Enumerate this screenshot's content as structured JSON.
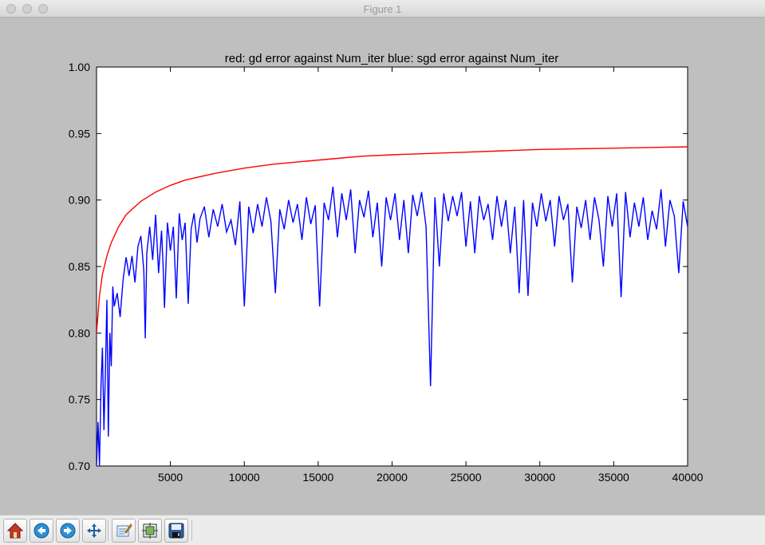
{
  "window": {
    "title": "Figure 1"
  },
  "toolbar": {
    "buttons": [
      {
        "icon": "home-icon"
      },
      {
        "icon": "back-arrow-icon"
      },
      {
        "icon": "forward-arrow-icon"
      },
      {
        "icon": "pan-icon"
      },
      {
        "icon": "zoom-rect-icon"
      },
      {
        "icon": "subplots-icon"
      },
      {
        "icon": "save-icon"
      }
    ]
  },
  "colors": {
    "gd": "#ff0000",
    "sgd": "#0000ff"
  },
  "chart_data": {
    "type": "line",
    "title": "red: gd error against Num_iter  blue: sgd error against Num_iter",
    "xlabel": "",
    "ylabel": "",
    "xlim": [
      0,
      40000
    ],
    "ylim": [
      0.7,
      1.0
    ],
    "xticks": [
      "5000",
      "10000",
      "15000",
      "20000",
      "25000",
      "30000",
      "35000",
      "40000"
    ],
    "yticks": [
      "0.70",
      "0.75",
      "0.80",
      "0.85",
      "0.90",
      "0.95",
      "1.00"
    ],
    "grid": false,
    "series": [
      {
        "color": "#ff0000",
        "points": [
          [
            0,
            0.8
          ],
          [
            200,
            0.828
          ],
          [
            400,
            0.844
          ],
          [
            700,
            0.858
          ],
          [
            1000,
            0.868
          ],
          [
            1500,
            0.88
          ],
          [
            2000,
            0.889
          ],
          [
            3000,
            0.899
          ],
          [
            4000,
            0.906
          ],
          [
            5000,
            0.911
          ],
          [
            6000,
            0.915
          ],
          [
            8000,
            0.92
          ],
          [
            10000,
            0.924
          ],
          [
            12000,
            0.927
          ],
          [
            14000,
            0.929
          ],
          [
            16000,
            0.931
          ],
          [
            18000,
            0.933
          ],
          [
            20000,
            0.934
          ],
          [
            22500,
            0.935
          ],
          [
            25000,
            0.936
          ],
          [
            27500,
            0.937
          ],
          [
            30000,
            0.938
          ],
          [
            32500,
            0.9385
          ],
          [
            35000,
            0.939
          ],
          [
            37500,
            0.9395
          ],
          [
            40000,
            0.94
          ]
        ]
      },
      {
        "color": "#0000ff",
        "points": [
          [
            0,
            0.7
          ],
          [
            100,
            0.733
          ],
          [
            200,
            0.7
          ],
          [
            300,
            0.76
          ],
          [
            400,
            0.789
          ],
          [
            500,
            0.727
          ],
          [
            600,
            0.77
          ],
          [
            700,
            0.825
          ],
          [
            800,
            0.722
          ],
          [
            900,
            0.8
          ],
          [
            1000,
            0.775
          ],
          [
            1100,
            0.835
          ],
          [
            1200,
            0.82
          ],
          [
            1400,
            0.83
          ],
          [
            1600,
            0.812
          ],
          [
            1800,
            0.84
          ],
          [
            2000,
            0.857
          ],
          [
            2200,
            0.843
          ],
          [
            2400,
            0.858
          ],
          [
            2600,
            0.838
          ],
          [
            2800,
            0.865
          ],
          [
            3000,
            0.873
          ],
          [
            3200,
            0.847
          ],
          [
            3300,
            0.796
          ],
          [
            3400,
            0.86
          ],
          [
            3600,
            0.88
          ],
          [
            3800,
            0.855
          ],
          [
            4000,
            0.889
          ],
          [
            4200,
            0.845
          ],
          [
            4400,
            0.877
          ],
          [
            4500,
            0.852
          ],
          [
            4600,
            0.819
          ],
          [
            4800,
            0.883
          ],
          [
            5000,
            0.862
          ],
          [
            5200,
            0.88
          ],
          [
            5400,
            0.826
          ],
          [
            5600,
            0.89
          ],
          [
            5800,
            0.87
          ],
          [
            6000,
            0.883
          ],
          [
            6200,
            0.822
          ],
          [
            6400,
            0.878
          ],
          [
            6600,
            0.89
          ],
          [
            6800,
            0.868
          ],
          [
            7000,
            0.886
          ],
          [
            7300,
            0.895
          ],
          [
            7600,
            0.872
          ],
          [
            7900,
            0.893
          ],
          [
            8200,
            0.88
          ],
          [
            8500,
            0.897
          ],
          [
            8800,
            0.876
          ],
          [
            9100,
            0.885
          ],
          [
            9400,
            0.866
          ],
          [
            9700,
            0.899
          ],
          [
            10000,
            0.82
          ],
          [
            10300,
            0.895
          ],
          [
            10600,
            0.875
          ],
          [
            10900,
            0.897
          ],
          [
            11200,
            0.88
          ],
          [
            11500,
            0.902
          ],
          [
            11800,
            0.884
          ],
          [
            12100,
            0.83
          ],
          [
            12400,
            0.893
          ],
          [
            12700,
            0.878
          ],
          [
            13000,
            0.9
          ],
          [
            13300,
            0.883
          ],
          [
            13600,
            0.897
          ],
          [
            13900,
            0.87
          ],
          [
            14200,
            0.902
          ],
          [
            14500,
            0.882
          ],
          [
            14800,
            0.896
          ],
          [
            15100,
            0.82
          ],
          [
            15400,
            0.898
          ],
          [
            15700,
            0.885
          ],
          [
            16000,
            0.91
          ],
          [
            16300,
            0.872
          ],
          [
            16600,
            0.905
          ],
          [
            16900,
            0.885
          ],
          [
            17200,
            0.908
          ],
          [
            17500,
            0.86
          ],
          [
            17800,
            0.9
          ],
          [
            18100,
            0.887
          ],
          [
            18400,
            0.907
          ],
          [
            18700,
            0.872
          ],
          [
            19000,
            0.898
          ],
          [
            19300,
            0.85
          ],
          [
            19600,
            0.902
          ],
          [
            19900,
            0.885
          ],
          [
            20200,
            0.905
          ],
          [
            20500,
            0.87
          ],
          [
            20800,
            0.9
          ],
          [
            21100,
            0.86
          ],
          [
            21400,
            0.904
          ],
          [
            21700,
            0.888
          ],
          [
            22000,
            0.906
          ],
          [
            22300,
            0.88
          ],
          [
            22600,
            0.76
          ],
          [
            22900,
            0.902
          ],
          [
            23200,
            0.85
          ],
          [
            23500,
            0.905
          ],
          [
            23800,
            0.884
          ],
          [
            24100,
            0.903
          ],
          [
            24400,
            0.888
          ],
          [
            24700,
            0.906
          ],
          [
            25000,
            0.865
          ],
          [
            25300,
            0.899
          ],
          [
            25600,
            0.86
          ],
          [
            25900,
            0.903
          ],
          [
            26200,
            0.885
          ],
          [
            26500,
            0.897
          ],
          [
            26800,
            0.87
          ],
          [
            27100,
            0.903
          ],
          [
            27400,
            0.88
          ],
          [
            27700,
            0.9
          ],
          [
            28000,
            0.86
          ],
          [
            28300,
            0.895
          ],
          [
            28600,
            0.83
          ],
          [
            28900,
            0.9
          ],
          [
            29200,
            0.828
          ],
          [
            29500,
            0.898
          ],
          [
            29800,
            0.88
          ],
          [
            30100,
            0.905
          ],
          [
            30400,
            0.884
          ],
          [
            30700,
            0.9
          ],
          [
            31000,
            0.865
          ],
          [
            31300,
            0.903
          ],
          [
            31600,
            0.885
          ],
          [
            31900,
            0.897
          ],
          [
            32200,
            0.838
          ],
          [
            32500,
            0.895
          ],
          [
            32800,
            0.879
          ],
          [
            33100,
            0.9
          ],
          [
            33400,
            0.87
          ],
          [
            33700,
            0.902
          ],
          [
            34000,
            0.885
          ],
          [
            34300,
            0.85
          ],
          [
            34600,
            0.903
          ],
          [
            34900,
            0.88
          ],
          [
            35200,
            0.905
          ],
          [
            35500,
            0.827
          ],
          [
            35800,
            0.906
          ],
          [
            36100,
            0.872
          ],
          [
            36400,
            0.898
          ],
          [
            36700,
            0.88
          ],
          [
            37000,
            0.902
          ],
          [
            37300,
            0.87
          ],
          [
            37600,
            0.892
          ],
          [
            37900,
            0.878
          ],
          [
            38200,
            0.908
          ],
          [
            38500,
            0.865
          ],
          [
            38800,
            0.9
          ],
          [
            39100,
            0.888
          ],
          [
            39400,
            0.845
          ],
          [
            39700,
            0.899
          ],
          [
            40000,
            0.88
          ]
        ]
      }
    ]
  }
}
